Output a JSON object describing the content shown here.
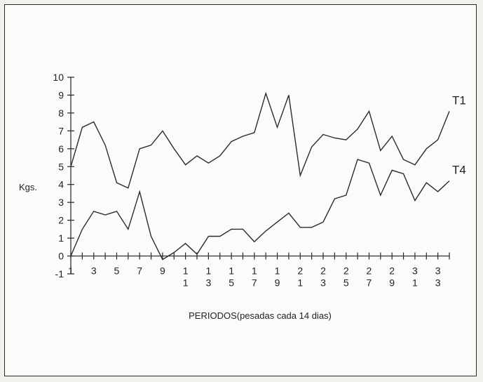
{
  "chart_data": {
    "type": "line",
    "xlabel": "PERIODOS(pesadas cada 14 dias)",
    "ylabel": "Kgs.",
    "ylim": [
      -1,
      10
    ],
    "yticks": [
      -1,
      0,
      1,
      2,
      3,
      4,
      5,
      6,
      7,
      8,
      9,
      10
    ],
    "xlim": [
      1,
      34
    ],
    "x_tick_labels": [
      {
        "x": 1,
        "lines": [
          "1"
        ]
      },
      {
        "x": 3,
        "lines": [
          "3"
        ]
      },
      {
        "x": 5,
        "lines": [
          "5"
        ]
      },
      {
        "x": 7,
        "lines": [
          "7"
        ]
      },
      {
        "x": 9,
        "lines": [
          "9"
        ]
      },
      {
        "x": 11,
        "lines": [
          "1",
          "1"
        ]
      },
      {
        "x": 13,
        "lines": [
          "1",
          "3"
        ]
      },
      {
        "x": 15,
        "lines": [
          "1",
          "5"
        ]
      },
      {
        "x": 17,
        "lines": [
          "1",
          "7"
        ]
      },
      {
        "x": 19,
        "lines": [
          "1",
          "9"
        ]
      },
      {
        "x": 21,
        "lines": [
          "2",
          "1"
        ]
      },
      {
        "x": 23,
        "lines": [
          "2",
          "3"
        ]
      },
      {
        "x": 25,
        "lines": [
          "2",
          "5"
        ]
      },
      {
        "x": 27,
        "lines": [
          "2",
          "7"
        ]
      },
      {
        "x": 29,
        "lines": [
          "2",
          "9"
        ]
      },
      {
        "x": 31,
        "lines": [
          "3",
          "1"
        ]
      },
      {
        "x": 33,
        "lines": [
          "3",
          "3"
        ]
      }
    ],
    "grid": false,
    "series": [
      {
        "name": "T1",
        "x": [
          1,
          2,
          3,
          4,
          5,
          6,
          7,
          8,
          9,
          10,
          11,
          12,
          13,
          14,
          15,
          16,
          17,
          18,
          19,
          20,
          21,
          22,
          23,
          24,
          25,
          26,
          27,
          28,
          29,
          30,
          31,
          32,
          33,
          34
        ],
        "values": [
          5.0,
          7.2,
          7.5,
          6.2,
          4.1,
          3.8,
          6.0,
          6.2,
          7.0,
          6.0,
          5.1,
          5.6,
          5.2,
          5.6,
          6.4,
          6.7,
          6.9,
          9.1,
          7.2,
          9.0,
          4.5,
          6.1,
          6.8,
          6.6,
          6.5,
          7.1,
          8.1,
          5.9,
          6.7,
          5.4,
          5.1,
          6.0,
          6.5,
          8.1
        ]
      },
      {
        "name": "T4",
        "x": [
          1,
          2,
          3,
          4,
          5,
          6,
          7,
          8,
          9,
          10,
          11,
          12,
          13,
          14,
          15,
          16,
          17,
          18,
          19,
          20,
          21,
          22,
          23,
          24,
          25,
          26,
          27,
          28,
          29,
          30,
          31,
          32,
          33,
          34
        ],
        "values": [
          0.0,
          1.5,
          2.5,
          2.3,
          2.5,
          1.5,
          3.6,
          1.1,
          -0.2,
          0.2,
          0.7,
          0.1,
          1.1,
          1.1,
          1.5,
          1.5,
          0.8,
          1.4,
          1.9,
          2.4,
          1.6,
          1.6,
          1.9,
          3.2,
          3.4,
          5.4,
          5.2,
          3.4,
          4.8,
          4.6,
          3.1,
          4.1,
          3.6,
          4.2
        ]
      }
    ]
  }
}
